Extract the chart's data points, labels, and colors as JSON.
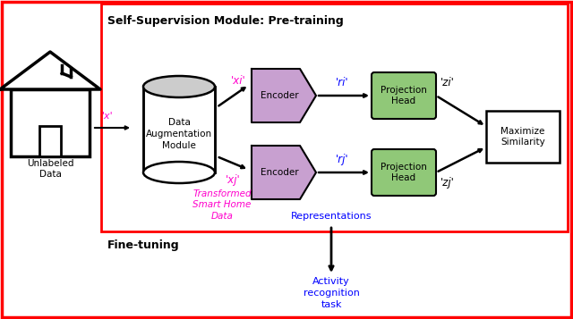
{
  "title_pretrain": "Self-Supervision Module: Pre-training",
  "title_finetune": "Fine-tuning",
  "label_unlabeled": "Unlabeled\nData",
  "label_x": "'x'",
  "label_dam": "Data\nAugmentation\nModule",
  "label_xi": "'xi'",
  "label_xj": "'xj'",
  "label_transformed": "Transformed\nSmart Home\nData",
  "label_encoder": "Encoder",
  "label_ri": "'ri'",
  "label_rj": "'rj'",
  "label_proj_head": "Projection\nHead",
  "label_zi": "'zi'",
  "label_zj": "'zj'",
  "label_maximize": "Maximize\nSimilarity",
  "label_representations": "Representations",
  "label_activity": "Activity\nrecognition\ntask",
  "color_red": "#ff0000",
  "color_magenta": "#ff00cc",
  "color_blue": "#0000ff",
  "color_purple_fill": "#c8a0d0",
  "color_green_fill": "#90c878",
  "color_white": "#ffffff",
  "color_black": "#000000"
}
